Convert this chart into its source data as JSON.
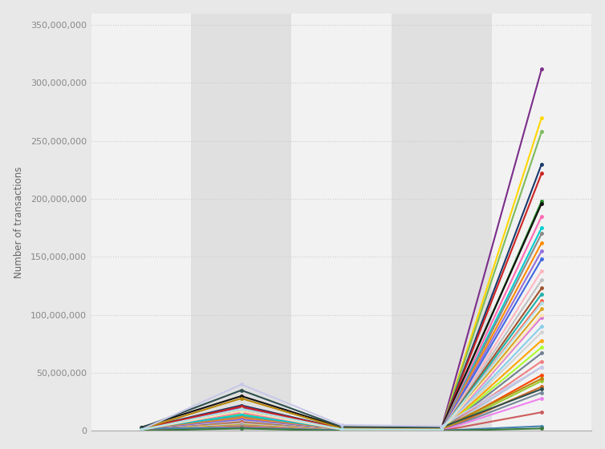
{
  "ylabel": "Number of transactions",
  "background_color": "#e8e8e8",
  "plot_bg_color": "#ebebeb",
  "stripe_light": "#f2f2f2",
  "stripe_dark": "#e0e0e0",
  "grid_color": "#cccccc",
  "ylim": [
    0,
    360000000
  ],
  "yticks": [
    0,
    50000000,
    100000000,
    150000000,
    200000000,
    250000000,
    300000000,
    350000000
  ],
  "x_positions": [
    0,
    1,
    2,
    3,
    4
  ],
  "series": [
    {
      "color": "#7b2d8b",
      "values": [
        1000000,
        20000000,
        1500000,
        2000000,
        312000000
      ]
    },
    {
      "color": "#ffd700",
      "values": [
        500000,
        15000000,
        800000,
        1000000,
        270000000
      ]
    },
    {
      "color": "#7cba5e",
      "values": [
        300000,
        13000000,
        600000,
        800000,
        258000000
      ]
    },
    {
      "color": "#1a3a6b",
      "values": [
        2000000,
        22000000,
        2000000,
        1500000,
        230000000
      ]
    },
    {
      "color": "#cc2222",
      "values": [
        1800000,
        21000000,
        1800000,
        1200000,
        222000000
      ]
    },
    {
      "color": "#228b22",
      "values": [
        400000,
        17000000,
        1000000,
        900000,
        198000000
      ]
    },
    {
      "color": "#111111",
      "values": [
        3000000,
        30000000,
        3000000,
        2500000,
        196000000
      ]
    },
    {
      "color": "#ff69b4",
      "values": [
        900000,
        16000000,
        900000,
        700000,
        185000000
      ]
    },
    {
      "color": "#00ced1",
      "values": [
        700000,
        14000000,
        700000,
        600000,
        175000000
      ]
    },
    {
      "color": "#888888",
      "values": [
        800000,
        12000000,
        600000,
        500000,
        170000000
      ]
    },
    {
      "color": "#ff8c00",
      "values": [
        600000,
        11000000,
        500000,
        400000,
        162000000
      ]
    },
    {
      "color": "#9370db",
      "values": [
        500000,
        10000000,
        400000,
        350000,
        155000000
      ]
    },
    {
      "color": "#4169e1",
      "values": [
        400000,
        9000000,
        350000,
        300000,
        148000000
      ]
    },
    {
      "color": "#ffb6c1",
      "values": [
        350000,
        8500000,
        300000,
        250000,
        138000000
      ]
    },
    {
      "color": "#c0c0c0",
      "values": [
        300000,
        8000000,
        280000,
        220000,
        130000000
      ]
    },
    {
      "color": "#a0522d",
      "values": [
        280000,
        7500000,
        260000,
        200000,
        123000000
      ]
    },
    {
      "color": "#20b2aa",
      "values": [
        260000,
        7000000,
        240000,
        180000,
        118000000
      ]
    },
    {
      "color": "#ff6347",
      "values": [
        240000,
        6800000,
        220000,
        160000,
        112000000
      ]
    },
    {
      "color": "#daa520",
      "values": [
        220000,
        6500000,
        200000,
        150000,
        105000000
      ]
    },
    {
      "color": "#da70d6",
      "values": [
        200000,
        6200000,
        180000,
        140000,
        98000000
      ]
    },
    {
      "color": "#87ceeb",
      "values": [
        180000,
        5900000,
        160000,
        130000,
        90000000
      ]
    },
    {
      "color": "#d3d3d3",
      "values": [
        160000,
        5600000,
        150000,
        120000,
        85000000
      ]
    },
    {
      "color": "#ffa500",
      "values": [
        150000,
        5300000,
        140000,
        110000,
        78000000
      ]
    },
    {
      "color": "#adff2f",
      "values": [
        140000,
        5000000,
        130000,
        100000,
        72000000
      ]
    },
    {
      "color": "#708090",
      "values": [
        130000,
        4800000,
        120000,
        95000,
        67000000
      ]
    },
    {
      "color": "#f08080",
      "values": [
        120000,
        4500000,
        110000,
        90000,
        60000000
      ]
    },
    {
      "color": "#b0c4de",
      "values": [
        110000,
        4200000,
        100000,
        85000,
        55000000
      ]
    },
    {
      "color": "#ff4500",
      "values": [
        100000,
        4000000,
        90000,
        80000,
        48000000
      ]
    },
    {
      "color": "#9acd32",
      "values": [
        90000,
        3800000,
        80000,
        75000,
        43000000
      ]
    },
    {
      "color": "#d2691e",
      "values": [
        80000,
        3600000,
        70000,
        70000,
        38000000
      ]
    },
    {
      "color": "#778899",
      "values": [
        70000,
        3400000,
        65000,
        65000,
        33000000
      ]
    },
    {
      "color": "#ee82ee",
      "values": [
        60000,
        3200000,
        60000,
        60000,
        28000000
      ]
    },
    {
      "color": "#cd5c5c",
      "values": [
        50000,
        3000000,
        55000,
        55000,
        16000000
      ]
    },
    {
      "color": "#4682b4",
      "values": [
        2000000,
        2500000,
        500000,
        300000,
        4000000
      ]
    },
    {
      "color": "#b8860b",
      "values": [
        1500000,
        28000000,
        2200000,
        1800000,
        45000000
      ]
    },
    {
      "color": "#2f4f4f",
      "values": [
        2500000,
        35000000,
        3500000,
        3000000,
        36000000
      ]
    },
    {
      "color": "#3a7a3a",
      "values": [
        200000,
        2000000,
        50000,
        40000,
        2000000
      ]
    },
    {
      "color": "#c8c8e8",
      "values": [
        1000000,
        40000000,
        5000000,
        4000000,
        55000000
      ]
    },
    {
      "color": "#ffe4b5",
      "values": [
        800000,
        17000000,
        1100000,
        900000,
        100000000
      ]
    },
    {
      "color": "#b0e0e6",
      "values": [
        900000,
        19000000,
        1300000,
        1100000,
        110000000
      ]
    }
  ]
}
